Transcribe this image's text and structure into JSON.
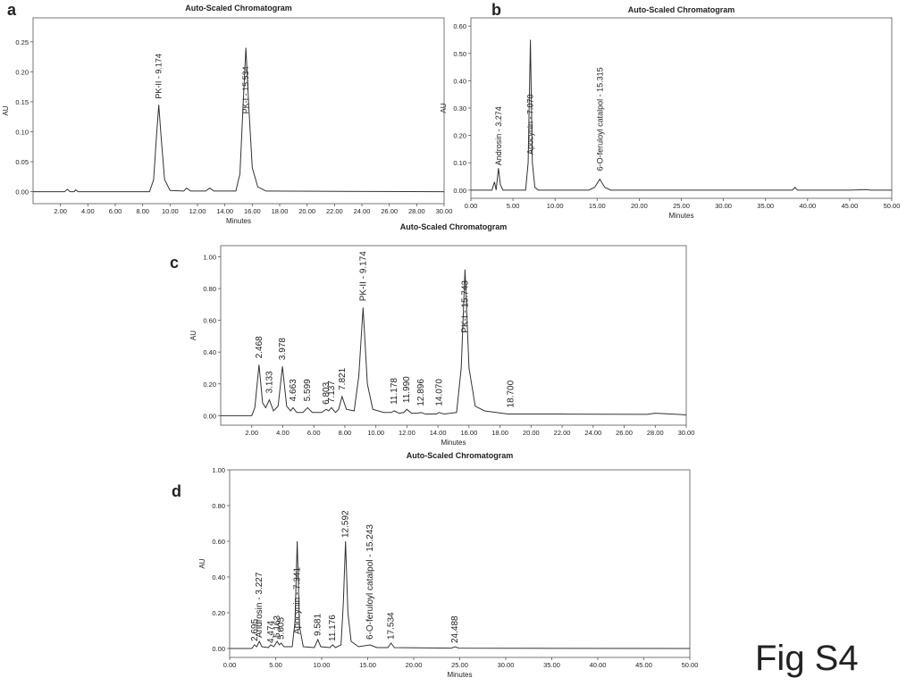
{
  "figure_label": "Fig S4",
  "chart_data": [
    {
      "type": "line",
      "panel_label": "a",
      "title": "Auto-Scaled Chromatogram",
      "x_label": "Minutes",
      "y_label": "AU",
      "xlim": [
        0,
        30
      ],
      "ylim": [
        -0.02,
        0.29
      ],
      "xticks": [
        {
          "value": 2,
          "label": "2.00"
        },
        {
          "value": 4,
          "label": "4.00"
        },
        {
          "value": 6,
          "label": "6.00"
        },
        {
          "value": 8,
          "label": "8.00"
        },
        {
          "value": 10,
          "label": "10.00"
        },
        {
          "value": 12,
          "label": "12.00"
        },
        {
          "value": 14,
          "label": "14.00"
        },
        {
          "value": 16,
          "label": "16.00"
        },
        {
          "value": 18,
          "label": "18.00"
        },
        {
          "value": 20,
          "label": "20.00"
        },
        {
          "value": 22,
          "label": "22.00"
        },
        {
          "value": 24,
          "label": "24.00"
        },
        {
          "value": 26,
          "label": "26.00"
        },
        {
          "value": 28,
          "label": "28.00"
        },
        {
          "value": 30,
          "label": "30.00"
        }
      ],
      "yticks": [
        {
          "value": 0,
          "label": "0.00"
        },
        {
          "value": 0.05,
          "label": "0.05"
        },
        {
          "value": 0.1,
          "label": "0.10"
        },
        {
          "value": 0.15,
          "label": "0.15"
        },
        {
          "value": 0.2,
          "label": "0.20"
        },
        {
          "value": 0.25,
          "label": "0.25"
        }
      ],
      "series": [
        {
          "color": "#333333",
          "x": [
            0,
            2.3,
            2.5,
            2.7,
            3.0,
            3.1,
            3.3,
            5,
            8.5,
            8.8,
            9.0,
            9.174,
            9.35,
            9.6,
            10,
            11,
            11.2,
            11.5,
            12.6,
            12.9,
            13.2,
            14.8,
            15.1,
            15.3,
            15.534,
            15.75,
            16.0,
            16.4,
            17,
            30
          ],
          "values": [
            0,
            0,
            0.004,
            0,
            0,
            0.003,
            0,
            0,
            0,
            0.02,
            0.09,
            0.145,
            0.09,
            0.02,
            0.002,
            0.001,
            0.006,
            0.001,
            0.001,
            0.006,
            0.001,
            0.001,
            0.03,
            0.13,
            0.24,
            0.14,
            0.04,
            0.008,
            0.001,
            0
          ]
        }
      ],
      "annotations": [
        {
          "text": "PK-II - 9.174",
          "x": 9.174,
          "y": 0.155
        },
        {
          "text": "PK-I - 15.534",
          "x": 15.534,
          "y": 0.13
        }
      ]
    },
    {
      "type": "line",
      "panel_label": "b",
      "title": "Auto-Scaled Chromatogram",
      "x_label": "Minutes",
      "y_label": "AU",
      "xlim": [
        0,
        50
      ],
      "ylim": [
        -0.03,
        0.63
      ],
      "xticks": [
        {
          "value": 0,
          "label": "0.00"
        },
        {
          "value": 5,
          "label": "5.00"
        },
        {
          "value": 10,
          "label": "10.00"
        },
        {
          "value": 15,
          "label": "15.00"
        },
        {
          "value": 20,
          "label": "20.00"
        },
        {
          "value": 25,
          "label": "25.00"
        },
        {
          "value": 30,
          "label": "30.00"
        },
        {
          "value": 35,
          "label": "35.00"
        },
        {
          "value": 40,
          "label": "40.00"
        },
        {
          "value": 45,
          "label": "45.00"
        },
        {
          "value": 50,
          "label": "50.00"
        }
      ],
      "yticks": [
        {
          "value": 0,
          "label": "0.00"
        },
        {
          "value": 0.1,
          "label": "0.10"
        },
        {
          "value": 0.2,
          "label": "0.20"
        },
        {
          "value": 0.3,
          "label": "0.30"
        },
        {
          "value": 0.4,
          "label": "0.40"
        },
        {
          "value": 0.5,
          "label": "0.50"
        },
        {
          "value": 0.6,
          "label": "0.60"
        }
      ],
      "series": [
        {
          "color": "#333333",
          "x": [
            0,
            2.5,
            2.8,
            3.0,
            3.274,
            3.5,
            3.8,
            4,
            6.5,
            6.8,
            7.07,
            7.3,
            7.6,
            8,
            14,
            14.7,
            15.315,
            15.9,
            16.6,
            38.2,
            38.5,
            38.8,
            45,
            47,
            47.5,
            50
          ],
          "values": [
            0,
            0,
            0.03,
            0,
            0.08,
            0.02,
            0,
            0,
            0,
            0.1,
            0.55,
            0.1,
            0.01,
            0,
            0,
            0.01,
            0.04,
            0.01,
            0,
            0,
            0.01,
            0,
            0,
            0.002,
            0,
            0
          ]
        }
      ],
      "annotations": [
        {
          "text": "Androsin - 3.274",
          "x": 3.274,
          "y": 0.09
        },
        {
          "text": "Apocynin - 7.070",
          "x": 7.07,
          "y": 0.13
        },
        {
          "text": "6-O-feruloyl catalpol - 15.315",
          "x": 15.315,
          "y": 0.07
        }
      ]
    },
    {
      "type": "line",
      "panel_label": "c",
      "title": "Auto-Scaled Chromatogram",
      "x_label": "Minutes",
      "y_label": "AU",
      "xlim": [
        0,
        30
      ],
      "ylim": [
        -0.06,
        1.07
      ],
      "xticks": [
        {
          "value": 2,
          "label": "2.00"
        },
        {
          "value": 4,
          "label": "4.00"
        },
        {
          "value": 6,
          "label": "6.00"
        },
        {
          "value": 8,
          "label": "8.00"
        },
        {
          "value": 10,
          "label": "10.00"
        },
        {
          "value": 12,
          "label": "12.00"
        },
        {
          "value": 14,
          "label": "14.00"
        },
        {
          "value": 16,
          "label": "16.00"
        },
        {
          "value": 18,
          "label": "18.00"
        },
        {
          "value": 20,
          "label": "20.00"
        },
        {
          "value": 22,
          "label": "22.00"
        },
        {
          "value": 24,
          "label": "24.00"
        },
        {
          "value": 26,
          "label": "26.00"
        },
        {
          "value": 28,
          "label": "28.00"
        },
        {
          "value": 30,
          "label": "30.00"
        }
      ],
      "yticks": [
        {
          "value": 0,
          "label": "0.00"
        },
        {
          "value": 0.2,
          "label": "0.20"
        },
        {
          "value": 0.4,
          "label": "0.40"
        },
        {
          "value": 0.6,
          "label": "0.60"
        },
        {
          "value": 0.8,
          "label": "0.80"
        },
        {
          "value": 1,
          "label": "1.00"
        }
      ],
      "series": [
        {
          "color": "#333333",
          "x": [
            0,
            2,
            2.2,
            2.468,
            2.7,
            2.9,
            3.133,
            3.4,
            3.7,
            3.978,
            4.25,
            4.5,
            4.663,
            4.9,
            5.3,
            5.599,
            5.9,
            6.5,
            6.803,
            6.95,
            7.137,
            7.4,
            7.6,
            7.821,
            8.1,
            8.6,
            8.9,
            9.174,
            9.45,
            9.8,
            10.5,
            11.0,
            11.178,
            11.5,
            11.8,
            11.99,
            12.3,
            12.7,
            12.896,
            13.2,
            13.9,
            14.07,
            14.4,
            15.2,
            15.5,
            15.743,
            16.0,
            16.4,
            17,
            18.5,
            18.7,
            19,
            22,
            27.5,
            28,
            30
          ],
          "values": [
            0,
            0,
            0.05,
            0.32,
            0.08,
            0.05,
            0.1,
            0.03,
            0.06,
            0.31,
            0.06,
            0.03,
            0.05,
            0.02,
            0.02,
            0.05,
            0.02,
            0.02,
            0.04,
            0.03,
            0.05,
            0.02,
            0.04,
            0.12,
            0.04,
            0.03,
            0.25,
            0.68,
            0.2,
            0.04,
            0.02,
            0.02,
            0.03,
            0.015,
            0.02,
            0.04,
            0.015,
            0.015,
            0.02,
            0.01,
            0.01,
            0.02,
            0.01,
            0.02,
            0.3,
            0.92,
            0.3,
            0.06,
            0.03,
            0.01,
            0.01,
            0.01,
            0.01,
            0.008,
            0.015,
            0.005
          ]
        }
      ],
      "annotations": [
        {
          "text": "2.468",
          "x": 2.468,
          "y": 0.36
        },
        {
          "text": "3.133",
          "x": 3.133,
          "y": 0.14
        },
        {
          "text": "3.978",
          "x": 3.978,
          "y": 0.35
        },
        {
          "text": "4.663",
          "x": 4.663,
          "y": 0.09
        },
        {
          "text": "5.599",
          "x": 5.599,
          "y": 0.09
        },
        {
          "text": "6.803",
          "x": 6.803,
          "y": 0.07
        },
        {
          "text": "7.137",
          "x": 7.137,
          "y": 0.08
        },
        {
          "text": "7.821",
          "x": 7.821,
          "y": 0.16
        },
        {
          "text": "PK-II - 9.174",
          "x": 9.174,
          "y": 0.72
        },
        {
          "text": "11.178",
          "x": 11.178,
          "y": 0.07
        },
        {
          "text": "11.990",
          "x": 11.99,
          "y": 0.08
        },
        {
          "text": "12.896",
          "x": 12.896,
          "y": 0.06
        },
        {
          "text": "14.070",
          "x": 14.07,
          "y": 0.06
        },
        {
          "text": "PK-I - 15.743",
          "x": 15.743,
          "y": 0.52
        },
        {
          "text": "18.700",
          "x": 18.7,
          "y": 0.05
        }
      ]
    },
    {
      "type": "line",
      "panel_label": "d",
      "title": "Auto-Scaled Chromatogram",
      "x_label": "Minutes",
      "y_label": "AU",
      "xlim": [
        0,
        50
      ],
      "ylim": [
        -0.05,
        1
      ],
      "xticks": [
        {
          "value": 0,
          "label": "0.00"
        },
        {
          "value": 5,
          "label": "5.00"
        },
        {
          "value": 10,
          "label": "10.00"
        },
        {
          "value": 15,
          "label": "15.00"
        },
        {
          "value": 20,
          "label": "20.00"
        },
        {
          "value": 25,
          "label": "25.00"
        },
        {
          "value": 30,
          "label": "30.00"
        },
        {
          "value": 35,
          "label": "35.00"
        },
        {
          "value": 40,
          "label": "40.00"
        },
        {
          "value": 45,
          "label": "45.00"
        },
        {
          "value": 50,
          "label": "50.00"
        }
      ],
      "yticks": [
        {
          "value": 0,
          "label": "0.00"
        },
        {
          "value": 0.2,
          "label": "0.20"
        },
        {
          "value": 0.4,
          "label": "0.40"
        },
        {
          "value": 0.6,
          "label": "0.60"
        },
        {
          "value": 0.8,
          "label": "0.80"
        },
        {
          "value": 1,
          "label": "1.00"
        }
      ],
      "series": [
        {
          "color": "#333333",
          "x": [
            0,
            2.4,
            2.695,
            2.95,
            3.227,
            3.5,
            4.2,
            4.474,
            4.8,
            5.163,
            5.4,
            5.605,
            5.9,
            6.8,
            7.1,
            7.341,
            7.6,
            8,
            9.2,
            9.581,
            9.9,
            10.9,
            11.176,
            11.5,
            12.1,
            12.35,
            12.592,
            12.85,
            13.2,
            14,
            15.243,
            16,
            17.2,
            17.534,
            17.9,
            24.1,
            24.488,
            24.9,
            30,
            50
          ],
          "values": [
            0,
            0,
            0.02,
            0.01,
            0.04,
            0.01,
            0.005,
            0.02,
            0.01,
            0.04,
            0.02,
            0.03,
            0.01,
            0.01,
            0.15,
            0.6,
            0.12,
            0.01,
            0.005,
            0.05,
            0.01,
            0.005,
            0.02,
            0.005,
            0.02,
            0.25,
            0.6,
            0.2,
            0.04,
            0.01,
            0.02,
            0.005,
            0.005,
            0.03,
            0.005,
            0.002,
            0.01,
            0.002,
            0.001,
            0
          ]
        }
      ],
      "annotations": [
        {
          "text": "2.695",
          "x": 2.695,
          "y": 0.04
        },
        {
          "text": "Androsin - 3.227",
          "x": 3.227,
          "y": 0.06
        },
        {
          "text": "4.474",
          "x": 4.474,
          "y": 0.03
        },
        {
          "text": "5.163",
          "x": 5.163,
          "y": 0.06
        },
        {
          "text": "5.605",
          "x": 5.605,
          "y": 0.05
        },
        {
          "text": "Apocynin - 7.341",
          "x": 7.341,
          "y": 0.08
        },
        {
          "text": "9.581",
          "x": 9.581,
          "y": 0.07
        },
        {
          "text": "11.176",
          "x": 11.176,
          "y": 0.04
        },
        {
          "text": "12.592",
          "x": 12.592,
          "y": 0.62
        },
        {
          "text": "6-O-feruloyl catalpol - 15.243",
          "x": 15.243,
          "y": 0.05
        },
        {
          "text": "17.534",
          "x": 17.534,
          "y": 0.05
        },
        {
          "text": "24.488",
          "x": 24.488,
          "y": 0.03
        }
      ]
    }
  ]
}
